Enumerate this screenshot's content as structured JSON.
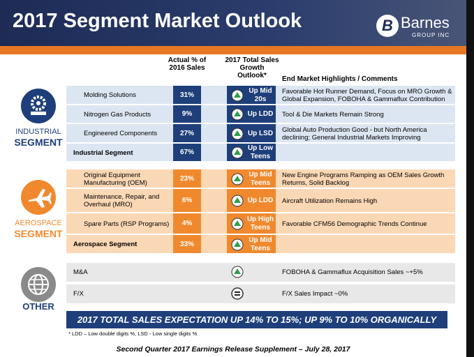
{
  "header": {
    "title": "2017 Segment Market Outlook",
    "logo": "Barnes",
    "logo_sub": "GROUP INC"
  },
  "columns": {
    "sales": "Actual % of 2016 Sales",
    "outlook": "2017 Total Sales Growth Outlook*",
    "comments": "End Market Highlights / Comments"
  },
  "segments": [
    {
      "label_top": "INDUSTRIAL",
      "label_bottom": "SEGMENT",
      "rows": [
        {
          "name": "Molding Solutions",
          "sales": "31%",
          "outlook": "Up Mid 20s",
          "comment": "Favorable Hot Runner Demand, Focus on MRO Growth & Global Expansion, FOBOHA & Gammaflux Contribution"
        },
        {
          "name": "Nitrogen Gas Products",
          "sales": "9%",
          "outlook": "Up LDD",
          "comment": "Tool & Die Markets Remain Strong"
        },
        {
          "name": "Engineered Components",
          "sales": "27%",
          "outlook": "Up LSD",
          "comment": "Global Auto Production Good - but North America declining; General Industrial Markets Improving"
        },
        {
          "name": "Industrial Segment",
          "sales": "67%",
          "outlook": "Up Low Teens",
          "comment": ""
        }
      ]
    },
    {
      "label_top": "AEROSPACE",
      "label_bottom": "SEGMENT",
      "rows": [
        {
          "name": "Original Equipment Manufacturing (OEM)",
          "sales": "23%",
          "outlook": "Up Mid Teens",
          "comment": "New Engine Programs Ramping as OEM Sales Growth Returns, Solid Backlog"
        },
        {
          "name": "Maintenance, Repair, and Overhaul (MRO)",
          "sales": "6%",
          "outlook": "Up LDD",
          "comment": "Aircraft Utilization Remains High"
        },
        {
          "name": "Spare Parts (RSP Programs)",
          "sales": "4%",
          "outlook": "Up High Teens",
          "comment": "Favorable CFM56 Demographic Trends Continue"
        },
        {
          "name": "Aerospace Segment",
          "sales": "33%",
          "outlook": "Up Mid Teens",
          "comment": ""
        }
      ]
    }
  ],
  "other": {
    "label": "OTHER",
    "rows": [
      {
        "name": "M&A",
        "comment": "FOBOHA & Gammaflux Acquisition Sales ~+5%"
      },
      {
        "name": "F/X",
        "comment": "F/X Sales Impact  ~0%"
      }
    ]
  },
  "total": "2017 TOTAL SALES EXPECTATION UP 14% TO 15%; UP 9% TO 10% ORGANICALLY",
  "footnote": "* LDD – Low double digits %, LSD - Low single digits %",
  "footer": "Second Quarter 2017 Earnings Release Supplement – July 28, 2017"
}
